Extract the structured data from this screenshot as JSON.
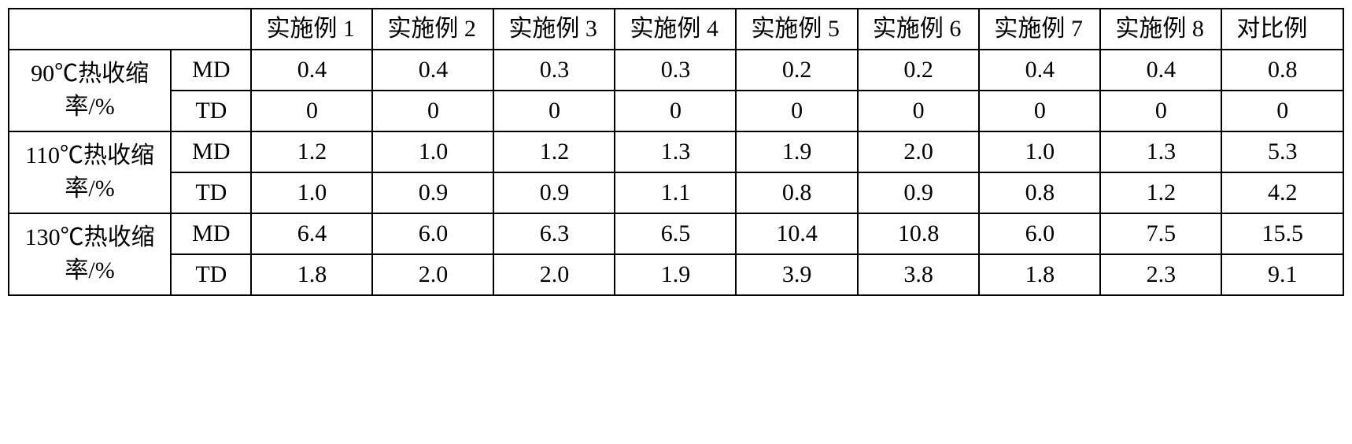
{
  "table": {
    "font_family": "Times New Roman, SimSun, serif",
    "font_size_pt": 22,
    "border_color": "#000000",
    "background_color": "#ffffff",
    "text_color": "#000000",
    "column_headers": [
      "实施例 1",
      "实施例 2",
      "实施例 3",
      "实施例 4",
      "实施例 5",
      "实施例 6",
      "实施例 7",
      "实施例 8",
      "对比例"
    ],
    "row_groups": [
      {
        "label": "90℃热收缩率/%",
        "sub_rows": [
          {
            "label": "MD",
            "values": [
              "0.4",
              "0.4",
              "0.3",
              "0.3",
              "0.2",
              "0.2",
              "0.4",
              "0.4",
              "0.8"
            ]
          },
          {
            "label": "TD",
            "values": [
              "0",
              "0",
              "0",
              "0",
              "0",
              "0",
              "0",
              "0",
              "0"
            ]
          }
        ]
      },
      {
        "label": "110℃热收缩率/%",
        "sub_rows": [
          {
            "label": "MD",
            "values": [
              "1.2",
              "1.0",
              "1.2",
              "1.3",
              "1.9",
              "2.0",
              "1.0",
              "1.3",
              "5.3"
            ]
          },
          {
            "label": "TD",
            "values": [
              "1.0",
              "0.9",
              "0.9",
              "1.1",
              "0.8",
              "0.9",
              "0.8",
              "1.2",
              "4.2"
            ]
          }
        ]
      },
      {
        "label": "130℃热收缩率/%",
        "sub_rows": [
          {
            "label": "MD",
            "values": [
              "6.4",
              "6.0",
              "6.3",
              "6.5",
              "10.4",
              "10.8",
              "6.0",
              "7.5",
              "15.5"
            ]
          },
          {
            "label": "TD",
            "values": [
              "1.8",
              "2.0",
              "2.0",
              "1.9",
              "3.9",
              "3.8",
              "1.8",
              "2.3",
              "9.1"
            ]
          }
        ]
      }
    ]
  }
}
